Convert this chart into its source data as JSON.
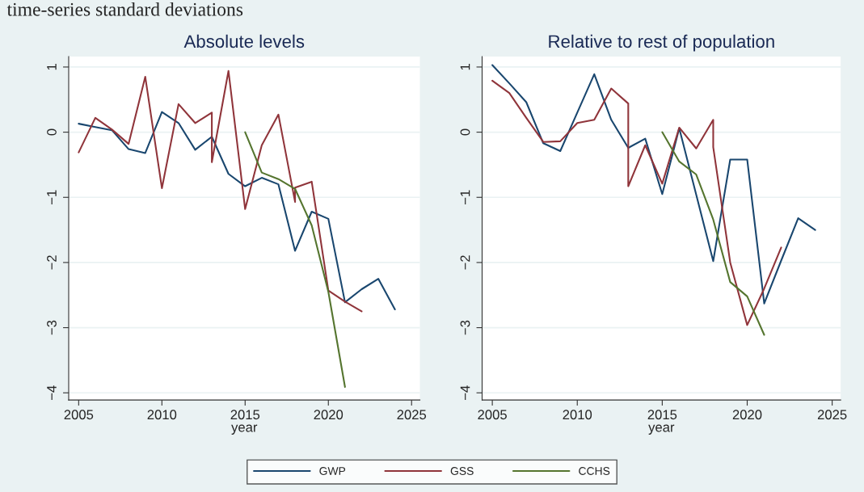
{
  "chart_data": [
    {
      "type": "line",
      "title": "Absolute levels",
      "xlabel": "year",
      "xlim": [
        2004.4,
        2025.5
      ],
      "ylim": [
        -4.11,
        1.16
      ],
      "xticks": [
        2005,
        2010,
        2015,
        2020,
        2025
      ],
      "yticks": [
        {
          "value": -4,
          "label": "−4"
        },
        {
          "value": -3,
          "label": "−3"
        },
        {
          "value": -2,
          "label": "−2"
        },
        {
          "value": -1,
          "label": "−1"
        },
        0,
        1
      ],
      "grid": "y",
      "legend": "bottom",
      "annotations": [
        "time-series standard deviations"
      ],
      "series": [
        {
          "name": "GWP",
          "color": "#1a476f",
          "x": [
            2005,
            2006,
            2007,
            2008,
            2009,
            2010,
            2011,
            2012,
            2013,
            2014,
            2015,
            2016,
            2017,
            2018,
            2019,
            2020,
            2021,
            2022,
            2023,
            2024
          ],
          "values": [
            0.13,
            0.08,
            0.03,
            -0.26,
            -0.32,
            0.31,
            0.14,
            -0.27,
            -0.07,
            -0.64,
            -0.83,
            -0.7,
            -0.8,
            -1.82,
            -1.22,
            -1.33,
            -2.61,
            -2.41,
            -2.25,
            -2.72
          ]
        },
        {
          "name": "GSS",
          "color": "#90353b",
          "x": [
            2005,
            2006,
            2007,
            2008,
            2009,
            2010,
            2011,
            2012,
            2013,
            2013,
            2014,
            2015,
            2016,
            2017,
            2018,
            2018,
            2019,
            2020,
            2021,
            2022
          ],
          "values": [
            -0.31,
            0.22,
            0.04,
            -0.18,
            0.85,
            -0.86,
            0.43,
            0.14,
            0.3,
            -0.46,
            0.94,
            -1.18,
            -0.2,
            0.27,
            -1.07,
            -0.85,
            -0.76,
            -2.43,
            -2.6,
            -2.75
          ]
        },
        {
          "name": "CCHS",
          "color": "#55752f",
          "x": [
            2015,
            2016,
            2017,
            2018,
            2019,
            2020,
            2021
          ],
          "values": [
            0.0,
            -0.62,
            -0.72,
            -0.87,
            -1.43,
            -2.45,
            -3.91
          ]
        }
      ]
    },
    {
      "type": "line",
      "title": "Relative to rest of population",
      "xlabel": "year",
      "xlim": [
        2004.4,
        2025.5
      ],
      "ylim": [
        -4.11,
        1.16
      ],
      "xticks": [
        2005,
        2010,
        2015,
        2020,
        2025
      ],
      "yticks": [
        {
          "value": -4,
          "label": "−4"
        },
        {
          "value": -3,
          "label": "−3"
        },
        {
          "value": -2,
          "label": "−2"
        },
        {
          "value": -1,
          "label": "−1"
        },
        0,
        1
      ],
      "grid": "y",
      "series": [
        {
          "name": "GWP",
          "color": "#1a476f",
          "x": [
            2005,
            2006,
            2007,
            2008,
            2009,
            2010,
            2011,
            2012,
            2013,
            2014,
            2015,
            2016,
            2017,
            2018,
            2019,
            2020,
            2021,
            2022,
            2023,
            2024
          ],
          "values": [
            1.03,
            0.75,
            0.46,
            -0.17,
            -0.29,
            0.3,
            0.89,
            0.19,
            -0.24,
            -0.1,
            -0.95,
            0.06,
            -0.96,
            -1.98,
            -0.42,
            -0.42,
            -2.63,
            -1.97,
            -1.32,
            -1.5
          ]
        },
        {
          "name": "GSS",
          "color": "#90353b",
          "x": [
            2005,
            2006,
            2007,
            2008,
            2009,
            2010,
            2011,
            2012,
            2013,
            2013,
            2014,
            2015,
            2016,
            2017,
            2018,
            2018,
            2019,
            2020,
            2021,
            2022
          ],
          "values": [
            0.79,
            0.6,
            0.22,
            -0.15,
            -0.14,
            0.14,
            0.19,
            0.67,
            0.44,
            -0.83,
            -0.2,
            -0.79,
            0.07,
            -0.25,
            0.19,
            -0.23,
            -2.0,
            -2.96,
            -2.4,
            -1.77
          ]
        },
        {
          "name": "CCHS",
          "color": "#55752f",
          "x": [
            2015,
            2016,
            2017,
            2018,
            2019,
            2020,
            2021
          ],
          "values": [
            0.0,
            -0.45,
            -0.65,
            -1.34,
            -2.3,
            -2.52,
            -3.11
          ]
        }
      ]
    }
  ]
}
